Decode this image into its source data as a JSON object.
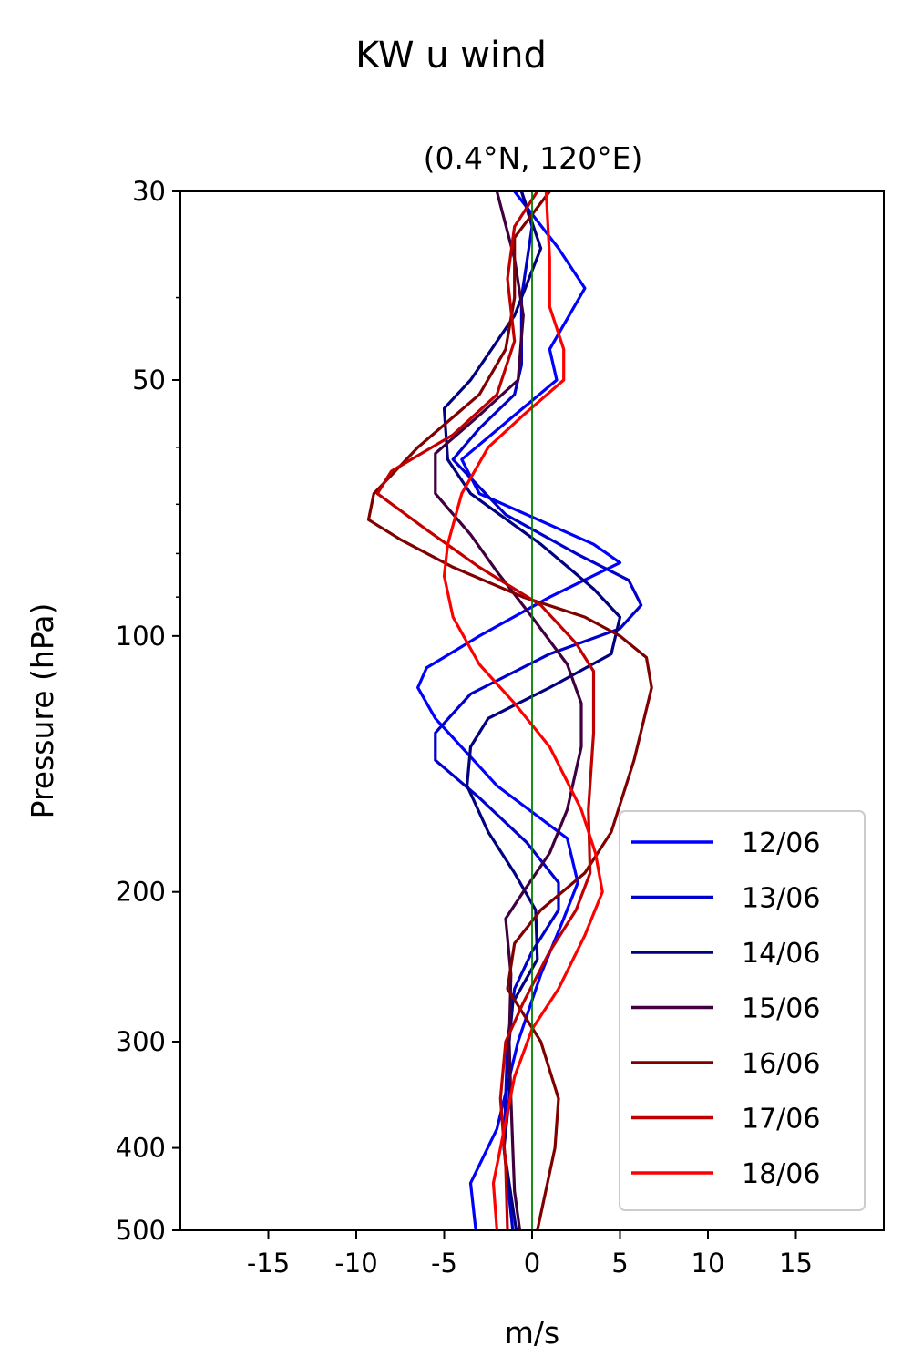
{
  "figure": {
    "title": "KW u wind"
  },
  "chart_data": {
    "type": "line",
    "title": "(0.4°N, 120°E)",
    "xlabel": "m/s",
    "ylabel": "Pressure (hPa)",
    "xlim": [
      -20,
      20
    ],
    "ylim": [
      500,
      30
    ],
    "yscale": "log",
    "xticks": [
      -15,
      -10,
      -5,
      0,
      5,
      10,
      15
    ],
    "xtick_labels": [
      "-15",
      "-10",
      "-5",
      "0",
      "5",
      "10",
      "15"
    ],
    "yticks": [
      30,
      50,
      100,
      200,
      300,
      400,
      500
    ],
    "ytick_labels": [
      "30",
      "50",
      "100",
      "200",
      "300",
      "400",
      "500"
    ],
    "y_minor_ticks": [
      40,
      60,
      70,
      80,
      90
    ],
    "reference_line": {
      "x": 0,
      "color": "#008000"
    },
    "legend_position": "lower-right",
    "series": [
      {
        "name": "12/06",
        "color": "#0000ff",
        "points": [
          [
            -1,
            30
          ],
          [
            1.5,
            35
          ],
          [
            3,
            39
          ],
          [
            1,
            46
          ],
          [
            1.4,
            50
          ],
          [
            -1,
            55
          ],
          [
            -4,
            62
          ],
          [
            -3,
            68
          ],
          [
            3.5,
            78
          ],
          [
            5,
            82
          ],
          [
            1,
            90
          ],
          [
            -3,
            100
          ],
          [
            -6,
            109
          ],
          [
            -6.5,
            115
          ],
          [
            -5.5,
            125
          ],
          [
            -2,
            150
          ],
          [
            2,
            173
          ],
          [
            2.6,
            195
          ],
          [
            1.8,
            215
          ],
          [
            0.5,
            250
          ],
          [
            -0.8,
            300
          ],
          [
            -2,
            380
          ],
          [
            -3.5,
            440
          ],
          [
            -3.2,
            500
          ]
        ]
      },
      {
        "name": "13/06",
        "color": "#0000cc",
        "points": [
          [
            -0.6,
            30
          ],
          [
            0,
            33
          ],
          [
            -0.6,
            40
          ],
          [
            -0.6,
            48
          ],
          [
            -1,
            52
          ],
          [
            -3,
            57
          ],
          [
            -4.5,
            62
          ],
          [
            -1.5,
            72
          ],
          [
            2.5,
            80
          ],
          [
            5.5,
            86
          ],
          [
            6.2,
            92
          ],
          [
            5,
            98
          ],
          [
            1,
            105
          ],
          [
            -3.5,
            117
          ],
          [
            -5.5,
            130
          ],
          [
            -5.5,
            140
          ],
          [
            -3,
            155
          ],
          [
            -0.3,
            175
          ],
          [
            1.5,
            195
          ],
          [
            1.5,
            210
          ],
          [
            0,
            235
          ],
          [
            -1,
            260
          ],
          [
            -1.4,
            300
          ],
          [
            -1.6,
            400
          ],
          [
            -1.1,
            500
          ]
        ]
      },
      {
        "name": "14/06",
        "color": "#000080",
        "points": [
          [
            -0.6,
            30
          ],
          [
            0.5,
            35
          ],
          [
            -1,
            42
          ],
          [
            -3.5,
            50
          ],
          [
            -5,
            54
          ],
          [
            -4.8,
            62
          ],
          [
            -3.5,
            68
          ],
          [
            0.5,
            78
          ],
          [
            3.5,
            88
          ],
          [
            5,
            95
          ],
          [
            4.5,
            105
          ],
          [
            1,
            115
          ],
          [
            -2.5,
            125
          ],
          [
            -3.5,
            135
          ],
          [
            -3.7,
            150
          ],
          [
            -2.5,
            170
          ],
          [
            -1,
            190
          ],
          [
            0.2,
            210
          ],
          [
            0.3,
            240
          ],
          [
            -1.1,
            270
          ],
          [
            -1.3,
            300
          ],
          [
            -1.3,
            350
          ],
          [
            -1.6,
            400
          ],
          [
            -0.9,
            500
          ]
        ]
      },
      {
        "name": "15/06",
        "color": "#400040",
        "points": [
          [
            -2,
            30
          ],
          [
            -1,
            36
          ],
          [
            -0.5,
            42
          ],
          [
            -0.8,
            50
          ],
          [
            -3,
            55
          ],
          [
            -5.5,
            61
          ],
          [
            -5.5,
            68
          ],
          [
            -3.5,
            76
          ],
          [
            -2,
            84
          ],
          [
            0,
            95
          ],
          [
            2,
            108
          ],
          [
            2.8,
            120
          ],
          [
            2.8,
            135
          ],
          [
            2,
            160
          ],
          [
            1,
            180
          ],
          [
            -0.5,
            200
          ],
          [
            -1.5,
            215
          ],
          [
            -1.2,
            250
          ],
          [
            -1.3,
            300
          ],
          [
            -1.2,
            350
          ],
          [
            -1.1,
            400
          ],
          [
            -1,
            450
          ],
          [
            -0.7,
            500
          ]
        ]
      },
      {
        "name": "16/06",
        "color": "#800000",
        "points": [
          [
            1,
            30
          ],
          [
            -1,
            34
          ],
          [
            -1,
            40
          ],
          [
            -1.5,
            46
          ],
          [
            -3,
            52
          ],
          [
            -6.5,
            60
          ],
          [
            -9,
            68
          ],
          [
            -9.3,
            73
          ],
          [
            -7.5,
            77
          ],
          [
            -4.5,
            83
          ],
          [
            -0.5,
            90
          ],
          [
            3,
            95
          ],
          [
            5,
            100
          ],
          [
            6.5,
            106
          ],
          [
            6.8,
            115
          ],
          [
            5.8,
            140
          ],
          [
            4.5,
            170
          ],
          [
            3,
            190
          ],
          [
            0.5,
            210
          ],
          [
            -1,
            230
          ],
          [
            -1.4,
            260
          ],
          [
            0.5,
            300
          ],
          [
            1.5,
            350
          ],
          [
            1.3,
            400
          ],
          [
            0.3,
            500
          ]
        ]
      },
      {
        "name": "17/06",
        "color": "#c00000",
        "points": [
          [
            0.3,
            30
          ],
          [
            -1,
            33
          ],
          [
            -1.4,
            38
          ],
          [
            -1,
            45
          ],
          [
            -2,
            52
          ],
          [
            -4.5,
            58
          ],
          [
            -8,
            64
          ],
          [
            -8.8,
            68
          ],
          [
            -6,
            75
          ],
          [
            -3,
            83
          ],
          [
            0.5,
            92
          ],
          [
            2.5,
            102
          ],
          [
            3.5,
            110
          ],
          [
            3.5,
            130
          ],
          [
            3.2,
            160
          ],
          [
            3.3,
            190
          ],
          [
            2.5,
            210
          ],
          [
            1,
            235
          ],
          [
            -0.5,
            270
          ],
          [
            -1.5,
            300
          ],
          [
            -1.8,
            350
          ],
          [
            -1.5,
            420
          ],
          [
            -1.4,
            500
          ]
        ]
      },
      {
        "name": "18/06",
        "color": "#ff0000",
        "points": [
          [
            0.8,
            30
          ],
          [
            1,
            36
          ],
          [
            1,
            41
          ],
          [
            1.8,
            46
          ],
          [
            1.8,
            50
          ],
          [
            -0.5,
            55
          ],
          [
            -2.5,
            60
          ],
          [
            -4,
            68
          ],
          [
            -4.8,
            78
          ],
          [
            -5,
            85
          ],
          [
            -4.5,
            95
          ],
          [
            -3,
            108
          ],
          [
            -1,
            120
          ],
          [
            1,
            135
          ],
          [
            2.8,
            160
          ],
          [
            3.6,
            180
          ],
          [
            4,
            200
          ],
          [
            3,
            225
          ],
          [
            1.5,
            260
          ],
          [
            0,
            290
          ],
          [
            -1,
            330
          ],
          [
            -1.8,
            400
          ],
          [
            -2.2,
            440
          ],
          [
            -2,
            500
          ]
        ]
      }
    ]
  }
}
